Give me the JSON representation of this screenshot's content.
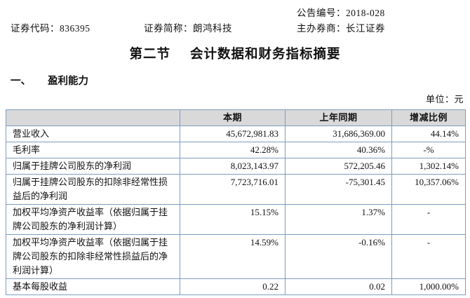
{
  "doc_header": {
    "announcement": {
      "label": "公告编号：",
      "value": "2018-028"
    },
    "stock_code": {
      "label": "证券代码：",
      "value": "836395"
    },
    "stock_name": {
      "label": "证券简称：",
      "value": "朗鸿科技"
    },
    "sponsor": {
      "label": "主办券商：",
      "value": "长江证券"
    }
  },
  "title": {
    "section_no": "第二节",
    "section_name": "会计数据和财务指标摘要"
  },
  "subsection": {
    "number": "一、",
    "name": "盈利能力"
  },
  "unit_note": "单位：元",
  "table": {
    "headers": [
      "",
      "本期",
      "上年同期",
      "增减比例"
    ],
    "rows": [
      [
        "营业收入",
        "45,672,981.83",
        "31,686,369.00",
        "44.14%"
      ],
      [
        "毛利率",
        "42.28%",
        "40.36%",
        "-%"
      ],
      [
        "归属于挂牌公司股东的净利润",
        "8,023,143.97",
        "572,205.46",
        "1,302.14%"
      ],
      [
        "归属于挂牌公司股东的扣除非经常性损益后的净利润",
        "7,723,716.01",
        "-75,301.45",
        "10,357.06%"
      ],
      [
        "加权平均净资产收益率（依据归属于挂牌公司股东的净利润计算）",
        "15.15%",
        "1.37%",
        "-"
      ],
      [
        "加权平均净资产收益率（依据归属于挂牌公司股东的扣除非经常性损益后的净利润计算）",
        "14.59%",
        "-0.16%",
        "-"
      ],
      [
        "基本每股收益",
        "0.22",
        "0.02",
        "1,000.00%"
      ]
    ]
  },
  "colors": {
    "table_border": "#7b9dc1",
    "header_row_bg": "#d9d9d9",
    "text": "#111111"
  }
}
